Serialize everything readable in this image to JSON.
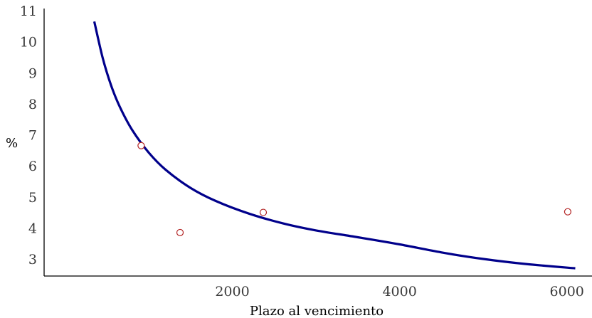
{
  "chart_data": {
    "type": "scatter",
    "title": "",
    "xlabel": "Plazo al vencimiento",
    "ylabel": "%",
    "xlim": [
      -250,
      6300
    ],
    "ylim": [
      2.45,
      11.0
    ],
    "x_ticks": [
      2000,
      4000,
      6000
    ],
    "y_ticks": [
      3,
      4,
      5,
      6,
      7,
      8,
      9,
      10,
      11
    ],
    "grid": false,
    "legend": "none",
    "series": [
      {
        "kind": "points",
        "x": [
          910,
          1375,
          2370,
          6010
        ],
        "y": [
          6.65,
          3.85,
          4.5,
          4.52
        ]
      },
      {
        "kind": "line",
        "x": [
          350,
          450,
          550,
          650,
          800,
          1000,
          1200,
          1500,
          1800,
          2200,
          2600,
          3000,
          3500,
          4000,
          4500,
          5000,
          5500,
          6100
        ],
        "y": [
          10.65,
          9.48,
          8.6,
          7.93,
          7.17,
          6.43,
          5.88,
          5.29,
          4.87,
          4.46,
          4.15,
          3.92,
          3.7,
          3.47,
          3.21,
          3.0,
          2.84,
          2.7
        ]
      }
    ],
    "colors": {
      "line": "#00008b",
      "point_stroke": "#b22222",
      "point_fill": "#ffffff",
      "axis": "#000000"
    }
  }
}
